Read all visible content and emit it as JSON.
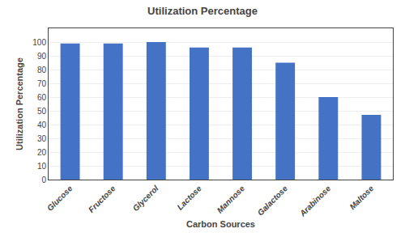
{
  "chart_data": {
    "type": "bar",
    "title": "Utilization Percentage",
    "xlabel": "Carbon Sources",
    "ylabel": "Utilization Percentage",
    "categories": [
      "Glucose",
      "Fructose",
      "Glycerol",
      "Lactose",
      "Mannose",
      "Galactose",
      "Arabinose",
      "Maltose"
    ],
    "values": [
      99,
      99,
      100,
      96,
      96,
      85,
      60,
      47
    ],
    "color": "#4472C4",
    "ylim": [
      0,
      110
    ],
    "yticks": [
      0,
      10,
      20,
      30,
      40,
      50,
      60,
      70,
      80,
      90,
      100
    ],
    "grid": true
  }
}
